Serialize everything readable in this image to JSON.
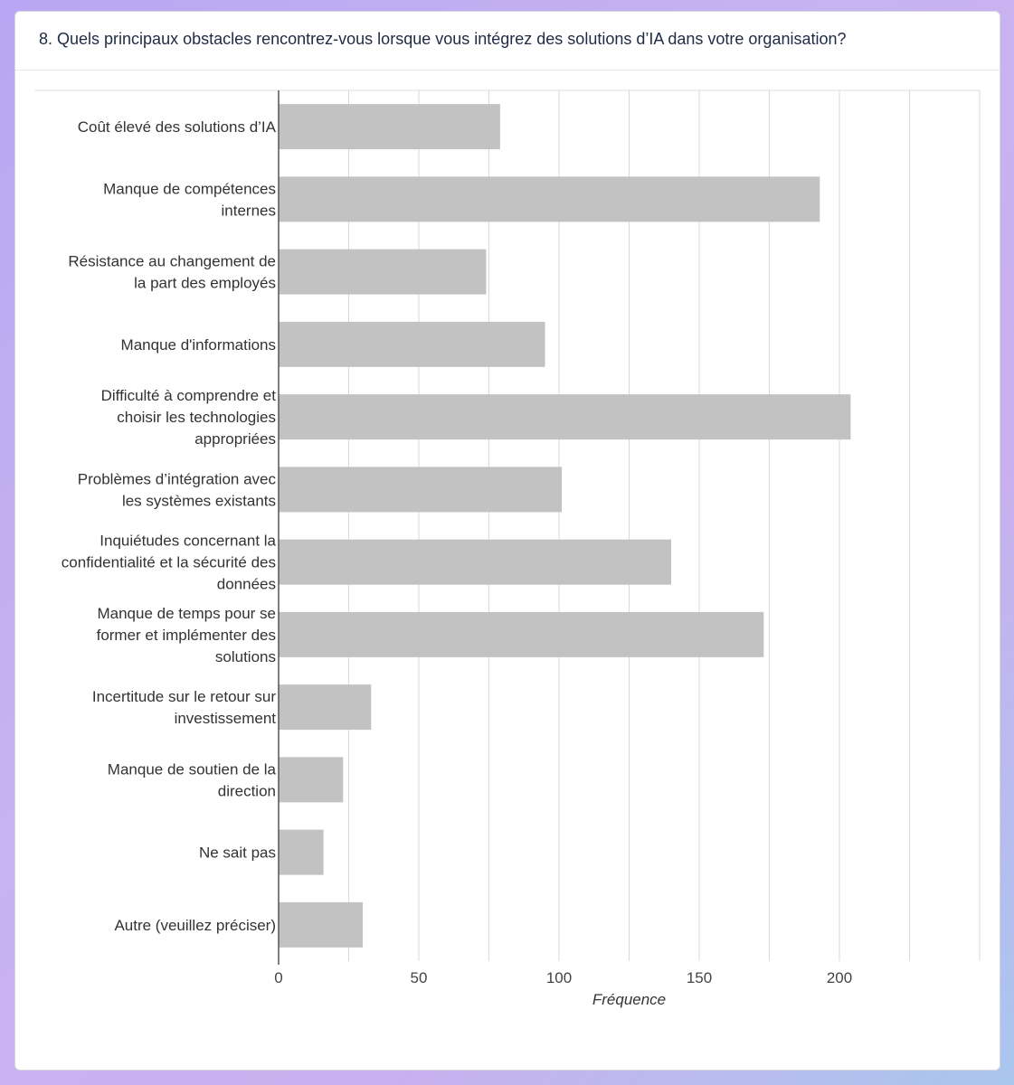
{
  "question": {
    "title": "8. Quels principaux obstacles rencontrez-vous lorsque vous intégrez des solutions d’IA dans votre organisation?"
  },
  "colors": {
    "bar": "#c2c2c2",
    "grid": "#d9d9d9",
    "axis": "#555555"
  },
  "chart_data": {
    "type": "bar",
    "orientation": "horizontal",
    "xlabel": "Fréquence",
    "ylabel": "",
    "xlim": [
      0,
      250
    ],
    "xticks": [
      0,
      50,
      100,
      150,
      200
    ],
    "grid": true,
    "categories": [
      [
        "Coût élevé des solutions d’IA"
      ],
      [
        "Manque de compétences",
        "internes"
      ],
      [
        "Résistance au changement de",
        "la part des employés"
      ],
      [
        "Manque d'informations"
      ],
      [
        "Difficulté à comprendre et",
        "choisir les technologies",
        "appropriées"
      ],
      [
        "Problèmes d’intégration avec",
        "les systèmes existants"
      ],
      [
        "Inquiétudes concernant la",
        "confidentialité et la sécurité des",
        "données"
      ],
      [
        "Manque de temps pour se",
        "former et implémenter des",
        "solutions"
      ],
      [
        "Incertitude sur le retour sur",
        "investissement"
      ],
      [
        "Manque de soutien de la",
        "direction"
      ],
      [
        "Ne sait pas"
      ],
      [
        "Autre (veuillez préciser)"
      ]
    ],
    "values": [
      79,
      193,
      74,
      95,
      204,
      101,
      140,
      173,
      33,
      23,
      16,
      30
    ]
  }
}
